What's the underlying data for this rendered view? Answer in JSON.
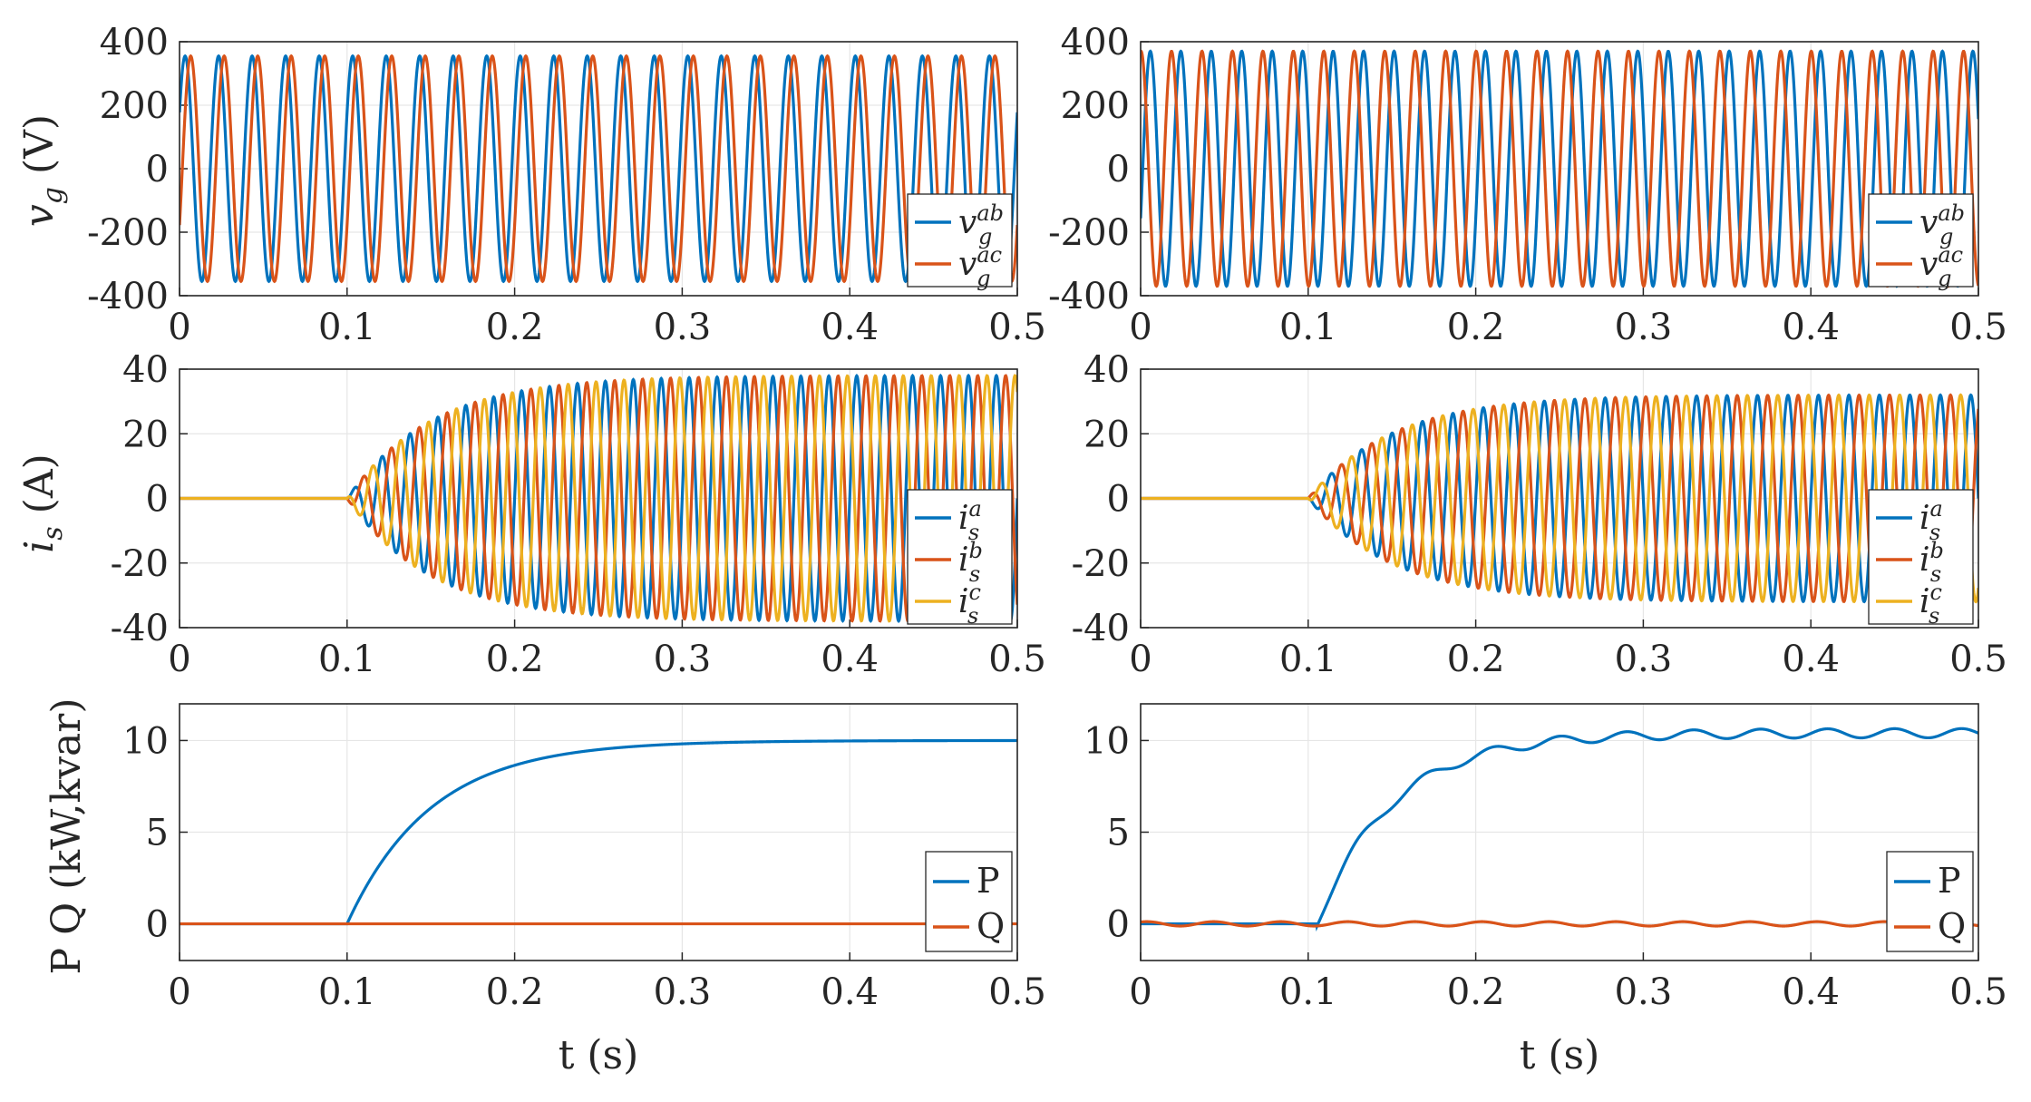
{
  "figure": {
    "ylabels": {
      "row1": {
        "sym": "v",
        "sub": "g",
        "unit": "(V)"
      },
      "row2": {
        "sym": "i",
        "sub": "s",
        "unit": "(A)"
      },
      "row3": {
        "text": "P Q (kW,kvar)"
      }
    },
    "xlabel": "t (s)"
  },
  "chart_data": [
    {
      "id": "vg-left",
      "type": "line",
      "xlim": [
        0,
        0.5
      ],
      "ylim": [
        -400,
        400
      ],
      "xticks": [
        "0",
        "0.1",
        "0.2",
        "0.3",
        "0.4",
        "0.5"
      ],
      "yticks": [
        "-400",
        "-200",
        "0",
        "200",
        "400"
      ],
      "grid": true,
      "legend_position": "right",
      "series": [
        {
          "name": "v_g^ab",
          "sym": "v",
          "sub": "g",
          "sup": "ab",
          "color": "#0072BD",
          "model": {
            "kind": "sine",
            "freq": 50,
            "amp": 355,
            "phase_deg": 30
          }
        },
        {
          "name": "v_g^ac",
          "sym": "v",
          "sub": "g",
          "sup": "ac",
          "color": "#D95319",
          "model": {
            "kind": "sine",
            "freq": 50,
            "amp": 355,
            "phase_deg": -30
          }
        }
      ]
    },
    {
      "id": "vg-right",
      "type": "line",
      "xlim": [
        0,
        0.5
      ],
      "ylim": [
        -400,
        400
      ],
      "xticks": [
        "0",
        "0.1",
        "0.2",
        "0.3",
        "0.4",
        "0.5"
      ],
      "yticks": [
        "-400",
        "-200",
        "0",
        "200",
        "400"
      ],
      "grid": true,
      "legend_position": "right",
      "series": [
        {
          "name": "v_g^ab",
          "sym": "v",
          "sub": "g",
          "sup": "ab",
          "color": "#0072BD",
          "model": {
            "kind": "sine",
            "freq": 55,
            "amp": 370,
            "phase_deg": -25
          }
        },
        {
          "name": "v_g^ac",
          "sym": "v",
          "sub": "g",
          "sup": "ac",
          "color": "#D95319",
          "model": {
            "kind": "sine",
            "freq": 55,
            "amp": 370,
            "phase_deg": 85
          }
        }
      ]
    },
    {
      "id": "is-left",
      "type": "line",
      "xlim": [
        0,
        0.5
      ],
      "ylim": [
        -40,
        40
      ],
      "xticks": [
        "0",
        "0.1",
        "0.2",
        "0.3",
        "0.4",
        "0.5"
      ],
      "yticks": [
        "-40",
        "-20",
        "0",
        "20",
        "40"
      ],
      "grid": true,
      "legend_position": "right",
      "series": [
        {
          "name": "i_s^a",
          "sym": "i",
          "sub": "s",
          "sup": "a",
          "color": "#0072BD",
          "model": {
            "kind": "ramp_sine",
            "freq": 60,
            "amp": 38,
            "phase_deg": 0,
            "t0": 0.1,
            "tau": 0.05
          }
        },
        {
          "name": "i_s^b",
          "sym": "i",
          "sub": "s",
          "sup": "b",
          "color": "#D95319",
          "model": {
            "kind": "ramp_sine",
            "freq": 60,
            "amp": 38,
            "phase_deg": -120,
            "t0": 0.1,
            "tau": 0.05
          }
        },
        {
          "name": "i_s^c",
          "sym": "i",
          "sub": "s",
          "sup": "c",
          "color": "#EDB120",
          "model": {
            "kind": "ramp_sine",
            "freq": 60,
            "amp": 38,
            "phase_deg": 120,
            "t0": 0.1,
            "tau": 0.05
          }
        }
      ]
    },
    {
      "id": "is-right",
      "type": "line",
      "xlim": [
        0,
        0.5
      ],
      "ylim": [
        -40,
        40
      ],
      "xticks": [
        "0",
        "0.1",
        "0.2",
        "0.3",
        "0.4",
        "0.5"
      ],
      "yticks": [
        "-40",
        "-20",
        "0",
        "20",
        "40"
      ],
      "grid": true,
      "legend_position": "right",
      "series": [
        {
          "name": "i_s^a",
          "sym": "i",
          "sub": "s",
          "sup": "a",
          "color": "#0072BD",
          "model": {
            "kind": "ramp_sine",
            "freq": 55,
            "amp": 32,
            "phase_deg": 0,
            "t0": 0.1,
            "tau": 0.05
          }
        },
        {
          "name": "i_s^b",
          "sym": "i",
          "sub": "s",
          "sup": "b",
          "color": "#D95319",
          "model": {
            "kind": "ramp_sine",
            "freq": 55,
            "amp": 32,
            "phase_deg": -120,
            "t0": 0.1,
            "tau": 0.05
          }
        },
        {
          "name": "i_s^c",
          "sym": "i",
          "sub": "s",
          "sup": "c",
          "color": "#EDB120",
          "model": {
            "kind": "ramp_sine",
            "freq": 55,
            "amp": 32,
            "phase_deg": 120,
            "t0": 0.1,
            "tau": 0.05
          }
        }
      ]
    },
    {
      "id": "pq-left",
      "type": "line",
      "xlim": [
        0,
        0.5
      ],
      "ylim": [
        -2,
        12
      ],
      "xticks": [
        "0",
        "0.1",
        "0.2",
        "0.3",
        "0.4",
        "0.5"
      ],
      "yticks": [
        "0",
        "5",
        "10"
      ],
      "ytick_values": [
        0,
        5,
        10
      ],
      "grid": true,
      "legend_position": "right",
      "series": [
        {
          "name": "P",
          "color": "#0072BD",
          "model": {
            "kind": "exp_rise",
            "final": 10,
            "t0": 0.1,
            "tau": 0.05
          }
        },
        {
          "name": "Q",
          "color": "#D95319",
          "model": {
            "kind": "flat",
            "level": 0
          }
        }
      ]
    },
    {
      "id": "pq-right",
      "type": "line",
      "xlim": [
        0,
        0.5
      ],
      "ylim": [
        -2,
        12
      ],
      "xticks": [
        "0",
        "0.1",
        "0.2",
        "0.3",
        "0.4",
        "0.5"
      ],
      "yticks": [
        "0",
        "5",
        "10"
      ],
      "ytick_values": [
        0,
        5,
        10
      ],
      "grid": true,
      "legend_position": "right",
      "series": [
        {
          "name": "P",
          "color": "#0072BD",
          "model": {
            "kind": "exp_rise",
            "final": 10.4,
            "t0": 0.105,
            "tau": 0.045
          }
        },
        {
          "name": "Q",
          "color": "#D95319",
          "model": {
            "kind": "flat",
            "level": 0
          }
        }
      ]
    }
  ]
}
